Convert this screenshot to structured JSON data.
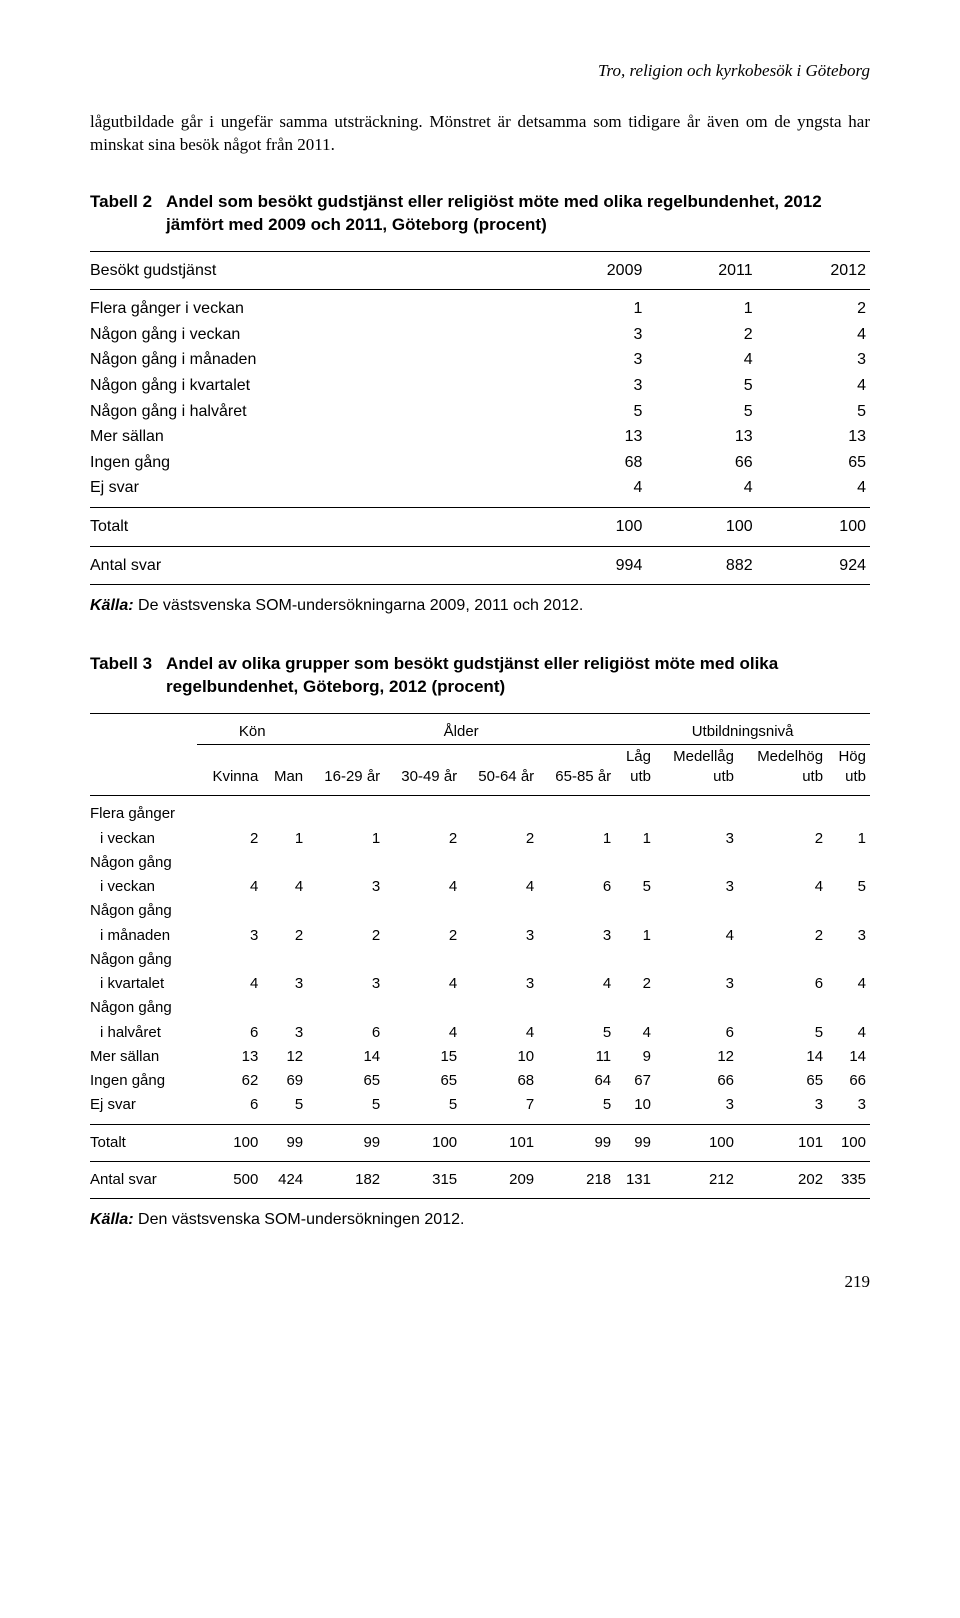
{
  "running_head": "Tro, religion och kyrkobesök i Göteborg",
  "paragraph": "lågutbildade går i ungefär samma utsträckning. Mönstret är detsamma som tidigare år även om de yngsta har minskat sina besök något från 2011.",
  "table2": {
    "label": "Tabell 2",
    "title": "Andel som besökt gudstjänst eller religiöst möte med olika regelbundenhet, 2012 jämfört med 2009 och 2011, Göteborg (procent)",
    "header_stub": "Besökt gudstjänst",
    "years": [
      "2009",
      "2011",
      "2012"
    ],
    "rows": [
      {
        "label": "Flera gånger i veckan",
        "v": [
          "1",
          "1",
          "2"
        ]
      },
      {
        "label": "Någon gång i veckan",
        "v": [
          "3",
          "2",
          "4"
        ]
      },
      {
        "label": "Någon gång i månaden",
        "v": [
          "3",
          "4",
          "3"
        ]
      },
      {
        "label": "Någon gång i kvartalet",
        "v": [
          "3",
          "5",
          "4"
        ]
      },
      {
        "label": "Någon gång i halvåret",
        "v": [
          "5",
          "5",
          "5"
        ]
      },
      {
        "label": "Mer sällan",
        "v": [
          "13",
          "13",
          "13"
        ]
      },
      {
        "label": "Ingen gång",
        "v": [
          "68",
          "66",
          "65"
        ]
      },
      {
        "label": "Ej svar",
        "v": [
          "4",
          "4",
          "4"
        ]
      }
    ],
    "total": {
      "label": "Totalt",
      "v": [
        "100",
        "100",
        "100"
      ]
    },
    "antal": {
      "label": "Antal svar",
      "v": [
        "994",
        "882",
        "924"
      ]
    },
    "source_key": "Källa:",
    "source_text": " De västsvenska SOM-undersökningarna 2009, 2011 och 2012."
  },
  "table3": {
    "label": "Tabell 3",
    "title": "Andel av olika grupper som besökt gudstjänst eller religiöst möte med olika regelbundenhet, Göteborg, 2012 (procent)",
    "groups": {
      "kon": "Kön",
      "alder": "Ålder",
      "utb": "Utbildningsnivå"
    },
    "sub": {
      "kvinna": "Kvinna",
      "man": "Man",
      "a1": "16-29 år",
      "a2": "30-49 år",
      "a3": "50-64 år",
      "a4": "65-85 år",
      "u1a": "Låg",
      "u1b": "utb",
      "u2a": "Medellåg",
      "u2b": "utb",
      "u3a": "Medelhög",
      "u3b": "utb",
      "u4a": "Hög",
      "u4b": "utb"
    },
    "rows": [
      {
        "l1": "Flera gånger",
        "l2": "i veckan",
        "v": [
          "2",
          "1",
          "1",
          "2",
          "2",
          "1",
          "1",
          "3",
          "2",
          "1"
        ]
      },
      {
        "l1": "Någon gång",
        "l2": "i veckan",
        "v": [
          "4",
          "4",
          "3",
          "4",
          "4",
          "6",
          "5",
          "3",
          "4",
          "5"
        ]
      },
      {
        "l1": "Någon gång",
        "l2": "i månaden",
        "v": [
          "3",
          "2",
          "2",
          "2",
          "3",
          "3",
          "1",
          "4",
          "2",
          "3"
        ]
      },
      {
        "l1": "Någon gång",
        "l2": "i kvartalet",
        "v": [
          "4",
          "3",
          "3",
          "4",
          "3",
          "4",
          "2",
          "3",
          "6",
          "4"
        ]
      },
      {
        "l1": "Någon gång",
        "l2": "i halvåret",
        "v": [
          "6",
          "3",
          "6",
          "4",
          "4",
          "5",
          "4",
          "6",
          "5",
          "4"
        ]
      },
      {
        "l1": "Mer sällan",
        "l2": "",
        "v": [
          "13",
          "12",
          "14",
          "15",
          "10",
          "11",
          "9",
          "12",
          "14",
          "14"
        ]
      },
      {
        "l1": "Ingen gång",
        "l2": "",
        "v": [
          "62",
          "69",
          "65",
          "65",
          "68",
          "64",
          "67",
          "66",
          "65",
          "66"
        ]
      },
      {
        "l1": "Ej svar",
        "l2": "",
        "v": [
          "6",
          "5",
          "5",
          "5",
          "7",
          "5",
          "10",
          "3",
          "3",
          "3"
        ]
      }
    ],
    "total": {
      "label": "Totalt",
      "v": [
        "100",
        "99",
        "99",
        "100",
        "101",
        "99",
        "99",
        "100",
        "101",
        "100"
      ]
    },
    "antal": {
      "label": "Antal svar",
      "v": [
        "500",
        "424",
        "182",
        "315",
        "209",
        "218",
        "131",
        "212",
        "202",
        "335"
      ]
    },
    "source_key": "Källa:",
    "source_text": " Den västsvenska SOM-undersökningen 2012."
  },
  "page_number": "219"
}
